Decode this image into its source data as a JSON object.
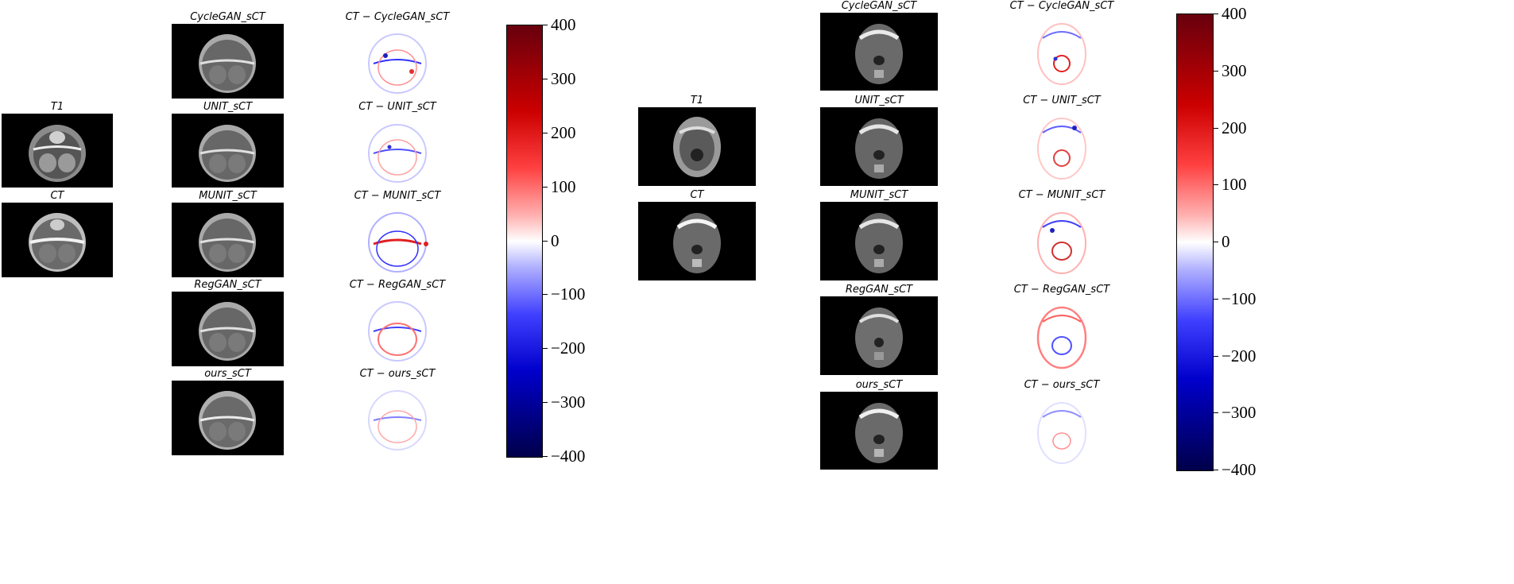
{
  "left_group": {
    "inputs": [
      {
        "label": "T1"
      },
      {
        "label": "CT"
      }
    ],
    "sct_panels": [
      {
        "label": "CycleGAN_sCT"
      },
      {
        "label": "UNIT_sCT"
      },
      {
        "label": "MUNIT_sCT"
      },
      {
        "label": "RegGAN_sCT"
      },
      {
        "label": "ours_sCT"
      }
    ],
    "diff_panels": [
      {
        "label": "CT − CycleGAN_sCT"
      },
      {
        "label": "CT − UNIT_sCT"
      },
      {
        "label": "CT − MUNIT_sCT"
      },
      {
        "label": "CT − RegGAN_sCT"
      },
      {
        "label": "CT − ours_sCT"
      }
    ],
    "colorbar_ticks": [
      "400",
      "300",
      "200",
      "100",
      "0",
      "−100",
      "−200",
      "−300",
      "−400"
    ]
  },
  "right_group": {
    "inputs": [
      {
        "label": "T1"
      },
      {
        "label": "CT"
      }
    ],
    "sct_panels": [
      {
        "label": "CycleGAN_sCT"
      },
      {
        "label": "UNIT_sCT"
      },
      {
        "label": "MUNIT_sCT"
      },
      {
        "label": "RegGAN_sCT"
      },
      {
        "label": "ours_sCT"
      }
    ],
    "diff_panels": [
      {
        "label": "CT − CycleGAN_sCT"
      },
      {
        "label": "CT − UNIT_sCT"
      },
      {
        "label": "CT − MUNIT_sCT"
      },
      {
        "label": "CT − RegGAN_sCT"
      },
      {
        "label": "CT − ours_sCT"
      }
    ],
    "colorbar_ticks": [
      "400",
      "300",
      "200",
      "100",
      "0",
      "−100",
      "−200",
      "−300",
      "−400"
    ]
  },
  "colors": {
    "colormap_top": "#67000d",
    "colormap_mid": "#ffffff",
    "colormap_bottom": "#00004a",
    "image_background": "#000000"
  }
}
